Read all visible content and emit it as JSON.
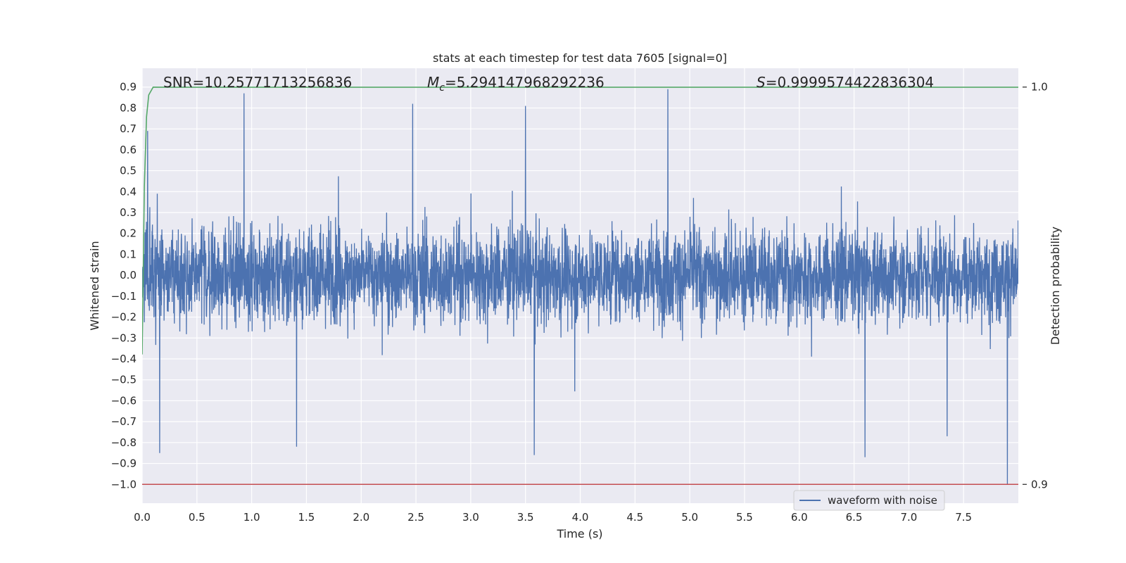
{
  "chart_data": {
    "type": "line",
    "title": "stats at each timestep for test data 7605 [signal=0]",
    "xlabel": "Time (s)",
    "ylabel": "Whitened strain",
    "y2label": "Detection probability",
    "xlim": [
      0.0,
      8.0
    ],
    "ylim": [
      -1.09,
      0.99
    ],
    "y2lim": [
      0.9,
      1.0
    ],
    "x_ticks": [
      "0.0",
      "0.5",
      "1.0",
      "1.5",
      "2.0",
      "2.5",
      "3.0",
      "3.5",
      "4.0",
      "4.5",
      "5.0",
      "5.5",
      "6.0",
      "6.5",
      "7.0",
      "7.5"
    ],
    "y_ticks": [
      "0.9",
      "0.8",
      "0.7",
      "0.6",
      "0.5",
      "0.4",
      "0.3",
      "0.2",
      "0.1",
      "0.0",
      "−0.1",
      "−0.2",
      "−0.3",
      "−0.4",
      "−0.5",
      "−0.6",
      "−0.7",
      "−0.8",
      "−0.9",
      "−1.0"
    ],
    "y2_ticks": [
      "1.0",
      "0.9"
    ],
    "grid": true,
    "legend_position": "lower-right",
    "annotations": {
      "snr": "SNR=10.25771713256836",
      "mc_symbol": "M",
      "mc_sub": "c",
      "mc_value": "=5.294147968292236",
      "s_symbol": "S",
      "s_value": "=0.9999574422836304"
    },
    "series": [
      {
        "name": "waveform with noise",
        "color": "#4c72b0",
        "axis": "left",
        "kind": "noise",
        "t_start": 0.0,
        "t_end": 8.0,
        "typical_amplitude": 0.25,
        "range": [
          -1.0,
          0.89
        ],
        "peaks": [
          [
            0.05,
            0.69
          ],
          [
            0.16,
            -0.85
          ],
          [
            0.93,
            0.87
          ],
          [
            1.41,
            -0.82
          ],
          [
            2.47,
            0.82
          ],
          [
            3.5,
            0.81
          ],
          [
            3.58,
            -0.86
          ],
          [
            4.8,
            0.89
          ],
          [
            6.6,
            -0.87
          ],
          [
            7.35,
            -0.77
          ],
          [
            7.9,
            -1.0
          ]
        ]
      },
      {
        "name": "",
        "color": "#55a868",
        "axis": "right",
        "x": [
          0.0,
          0.02,
          0.04,
          0.06,
          0.1,
          0.2,
          8.0
        ],
        "y": [
          0.9327,
          0.975,
          0.9925,
          0.998,
          0.99998,
          0.99996,
          0.99996
        ]
      },
      {
        "name": "",
        "color": "#c44e52",
        "axis": "left",
        "x": [
          0.0,
          8.0
        ],
        "y": [
          -1.0,
          -1.0
        ]
      }
    ]
  }
}
